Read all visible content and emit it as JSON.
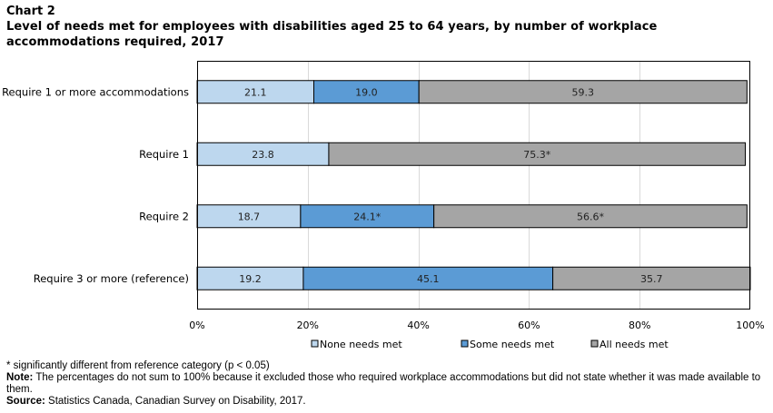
{
  "header": {
    "chart_label": "Chart 2",
    "title_line_1": "Level of needs met for employees with disabilities aged 25 to 64 years, by number of workplace",
    "title_line_2": "accommodations required, 2017"
  },
  "chart_data": {
    "type": "bar",
    "orientation": "horizontal",
    "stacked": true,
    "title": "Level of needs met for employees with disabilities aged 25 to 64 years, by number of workplace accommodations required, 2017",
    "categories": [
      "Require 1 or more accommodations",
      "Require 1",
      "Require 2",
      "Require 3 or more (reference)"
    ],
    "series": [
      {
        "name": "None needs met",
        "color": "#bdd7ee",
        "values": [
          21.1,
          23.8,
          18.7,
          19.2
        ],
        "labels": [
          "21.1",
          "23.8",
          "18.7",
          "19.2"
        ]
      },
      {
        "name": "Some needs met",
        "color": "#5b9bd5",
        "values": [
          19.0,
          0,
          24.1,
          45.1
        ],
        "labels": [
          "19.0",
          "",
          "24.1*",
          "45.1"
        ]
      },
      {
        "name": "All needs met",
        "color": "#a5a5a5",
        "values": [
          59.3,
          75.3,
          56.6,
          35.7
        ],
        "labels": [
          "59.3",
          "75.3*",
          "56.6*",
          "35.7"
        ]
      }
    ],
    "xlim": [
      0,
      100
    ],
    "xticks": [
      "0%",
      "20%",
      "40%",
      "60%",
      "80%",
      "100%"
    ],
    "xlabel": "",
    "ylabel": "",
    "grid": true,
    "legend_position": "bottom"
  },
  "footnotes": {
    "significance": "* significantly different from reference category (p < 0.05)",
    "note_label": "Note:",
    "note_text": " The percentages do not sum to 100% because it excluded those who required workplace accommodations but did not state whether it was made available to them.",
    "source_label": "Source:",
    "source_text": " Statistics Canada, Canadian Survey on Disability, 2017."
  }
}
